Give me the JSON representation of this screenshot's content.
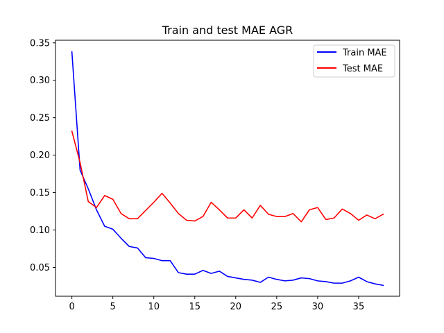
{
  "chart_data": {
    "type": "line",
    "title": "Train and test MAE AGR",
    "xlabel": "",
    "ylabel": "",
    "xlim": [
      -2.0,
      40.0
    ],
    "ylim": [
      0.0115,
      0.3535
    ],
    "xticks": [
      0,
      5,
      10,
      15,
      20,
      25,
      30,
      35
    ],
    "xtick_labels": [
      "0",
      "5",
      "10",
      "15",
      "20",
      "25",
      "30",
      "35"
    ],
    "yticks": [
      0.05,
      0.1,
      0.15,
      0.2,
      0.25,
      0.3,
      0.35
    ],
    "ytick_labels": [
      "0.05",
      "0.10",
      "0.15",
      "0.20",
      "0.25",
      "0.30",
      "0.35"
    ],
    "grid": false,
    "legend_position": "top-right",
    "x": [
      0,
      1,
      2,
      3,
      4,
      5,
      6,
      7,
      8,
      9,
      10,
      11,
      12,
      13,
      14,
      15,
      16,
      17,
      18,
      19,
      20,
      21,
      22,
      23,
      24,
      25,
      26,
      27,
      28,
      29,
      30,
      31,
      32,
      33,
      34,
      35,
      36,
      37,
      38
    ],
    "series": [
      {
        "name": "Train MAE",
        "color": "#0000ff",
        "values": [
          0.338,
          0.18,
          0.155,
          0.127,
          0.105,
          0.101,
          0.089,
          0.078,
          0.076,
          0.063,
          0.062,
          0.059,
          0.059,
          0.043,
          0.041,
          0.041,
          0.046,
          0.042,
          0.045,
          0.038,
          0.036,
          0.034,
          0.033,
          0.03,
          0.037,
          0.034,
          0.032,
          0.033,
          0.036,
          0.035,
          0.032,
          0.031,
          0.029,
          0.029,
          0.032,
          0.037,
          0.031,
          0.028,
          0.026
        ]
      },
      {
        "name": "Test MAE",
        "color": "#ff0000",
        "values": [
          0.232,
          0.19,
          0.138,
          0.13,
          0.146,
          0.141,
          0.122,
          0.115,
          0.115,
          0.126,
          0.137,
          0.149,
          0.136,
          0.122,
          0.113,
          0.112,
          0.118,
          0.137,
          0.127,
          0.116,
          0.116,
          0.127,
          0.116,
          0.133,
          0.121,
          0.118,
          0.118,
          0.122,
          0.111,
          0.127,
          0.13,
          0.114,
          0.116,
          0.128,
          0.122,
          0.113,
          0.12,
          0.115,
          0.121
        ]
      }
    ]
  }
}
